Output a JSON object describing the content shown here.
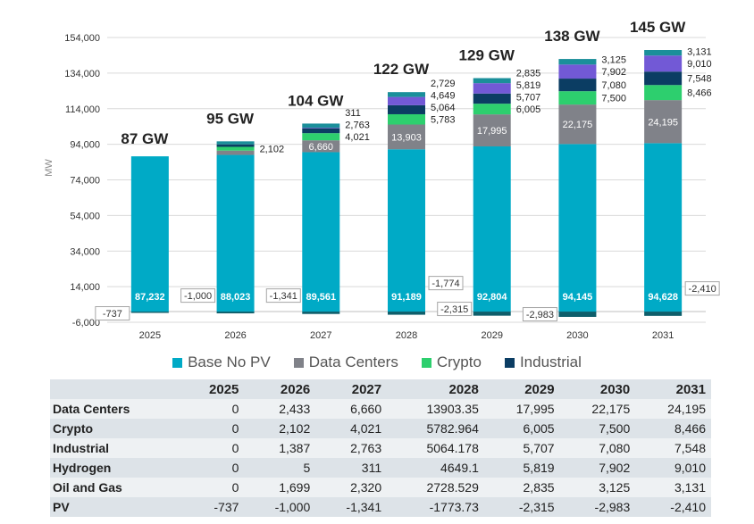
{
  "chart_data": {
    "type": "bar",
    "stacked": true,
    "categories": [
      "2025",
      "2026",
      "2027",
      "2028",
      "2029",
      "2030",
      "2031"
    ],
    "ylabel": "MW",
    "ylim": [
      -6000,
      154000
    ],
    "yticks": [
      -6000,
      14000,
      34000,
      54000,
      74000,
      94000,
      114000,
      134000,
      154000
    ],
    "ytick_labels": [
      "-6,000",
      "14,000",
      "34,000",
      "54,000",
      "74,000",
      "94,000",
      "114,000",
      "134,000",
      "154,000"
    ],
    "grid": true,
    "legend_position": "bottom",
    "totals": [
      "87 GW",
      "95 GW",
      "104 GW",
      "122 GW",
      "129 GW",
      "138 GW",
      "145 GW"
    ],
    "series": [
      {
        "name": "Base No PV",
        "color": "#00aac6",
        "values": [
          87232,
          88023,
          89561,
          91189,
          92804,
          94145,
          94628
        ],
        "labels": [
          "87,232",
          "88,023",
          "89,561",
          "91,189",
          "92,804",
          "94,145",
          "94,628"
        ]
      },
      {
        "name": "Data Centers",
        "color": "#808289",
        "values": [
          0,
          2433,
          6660,
          13903.35,
          17995,
          22175,
          24195
        ],
        "labels": [
          "",
          "",
          "6,660",
          "13,903",
          "17,995",
          "22,175",
          "24,195"
        ]
      },
      {
        "name": "Crypto",
        "color": "#2dcf6e",
        "values": [
          0,
          2102,
          4021,
          5782.964,
          6005,
          7500,
          8466
        ],
        "labels": [
          "",
          "2,102",
          "4,021",
          "5,783",
          "6,005",
          "7,500",
          "8,466"
        ]
      },
      {
        "name": "Industrial",
        "color": "#0b3d63",
        "values": [
          0,
          1387,
          2763,
          5064.178,
          5707,
          7080,
          7548
        ],
        "labels": [
          "",
          "",
          "2,763",
          "5,064",
          "5,707",
          "7,080",
          "7,548"
        ]
      },
      {
        "name": "Hydrogen",
        "color": "#7259d6",
        "values": [
          0,
          5,
          311,
          4649.1,
          5819,
          7902,
          9010
        ],
        "labels": [
          "",
          "",
          "311",
          "4,649",
          "5,819",
          "7,902",
          "9,010"
        ]
      },
      {
        "name": "Oil and Gas",
        "color": "#1a8f9a",
        "values": [
          0,
          1699,
          2320,
          2728.529,
          2835,
          3125,
          3131
        ],
        "labels": [
          "",
          "",
          "",
          "2,729",
          "2,835",
          "3,125",
          "3,131"
        ]
      },
      {
        "name": "PV",
        "color": "#0e5e6b",
        "values": [
          -737,
          -1000,
          -1341,
          -1773.73,
          -2315,
          -2983,
          -2410
        ],
        "labels": [
          "-737",
          "-1,000",
          "-1,341",
          "-1,774",
          "-2,315",
          "-2,983",
          "-2,410"
        ]
      }
    ]
  },
  "legend": [
    {
      "label": "Base No PV",
      "color": "#00aac6"
    },
    {
      "label": "Data Centers",
      "color": "#808289"
    },
    {
      "label": "Crypto",
      "color": "#2dcf6e"
    },
    {
      "label": "Industrial",
      "color": "#0b3d63"
    }
  ],
  "table": {
    "headers": [
      "2025",
      "2026",
      "2027",
      "2028",
      "2029",
      "2030",
      "2031"
    ],
    "rows": [
      {
        "label": "Data Centers",
        "cells": [
          "0",
          "2,433",
          "6,660",
          "13903.35",
          "17,995",
          "22,175",
          "24,195"
        ]
      },
      {
        "label": "Crypto",
        "cells": [
          "0",
          "2,102",
          "4,021",
          "5782.964",
          "6,005",
          "7,500",
          "8,466"
        ]
      },
      {
        "label": "Industrial",
        "cells": [
          "0",
          "1,387",
          "2,763",
          "5064.178",
          "5,707",
          "7,080",
          "7,548"
        ]
      },
      {
        "label": "Hydrogen",
        "cells": [
          "0",
          "5",
          "311",
          "4649.1",
          "5,819",
          "7,902",
          "9,010"
        ]
      },
      {
        "label": "Oil and Gas",
        "cells": [
          "0",
          "1,699",
          "2,320",
          "2728.529",
          "2,835",
          "3,125",
          "3,131"
        ]
      },
      {
        "label": "PV",
        "cells": [
          "-737",
          "-1,000",
          "-1,341",
          "-1773.73",
          "-2,315",
          "-2,983",
          "-2,410"
        ]
      }
    ]
  }
}
